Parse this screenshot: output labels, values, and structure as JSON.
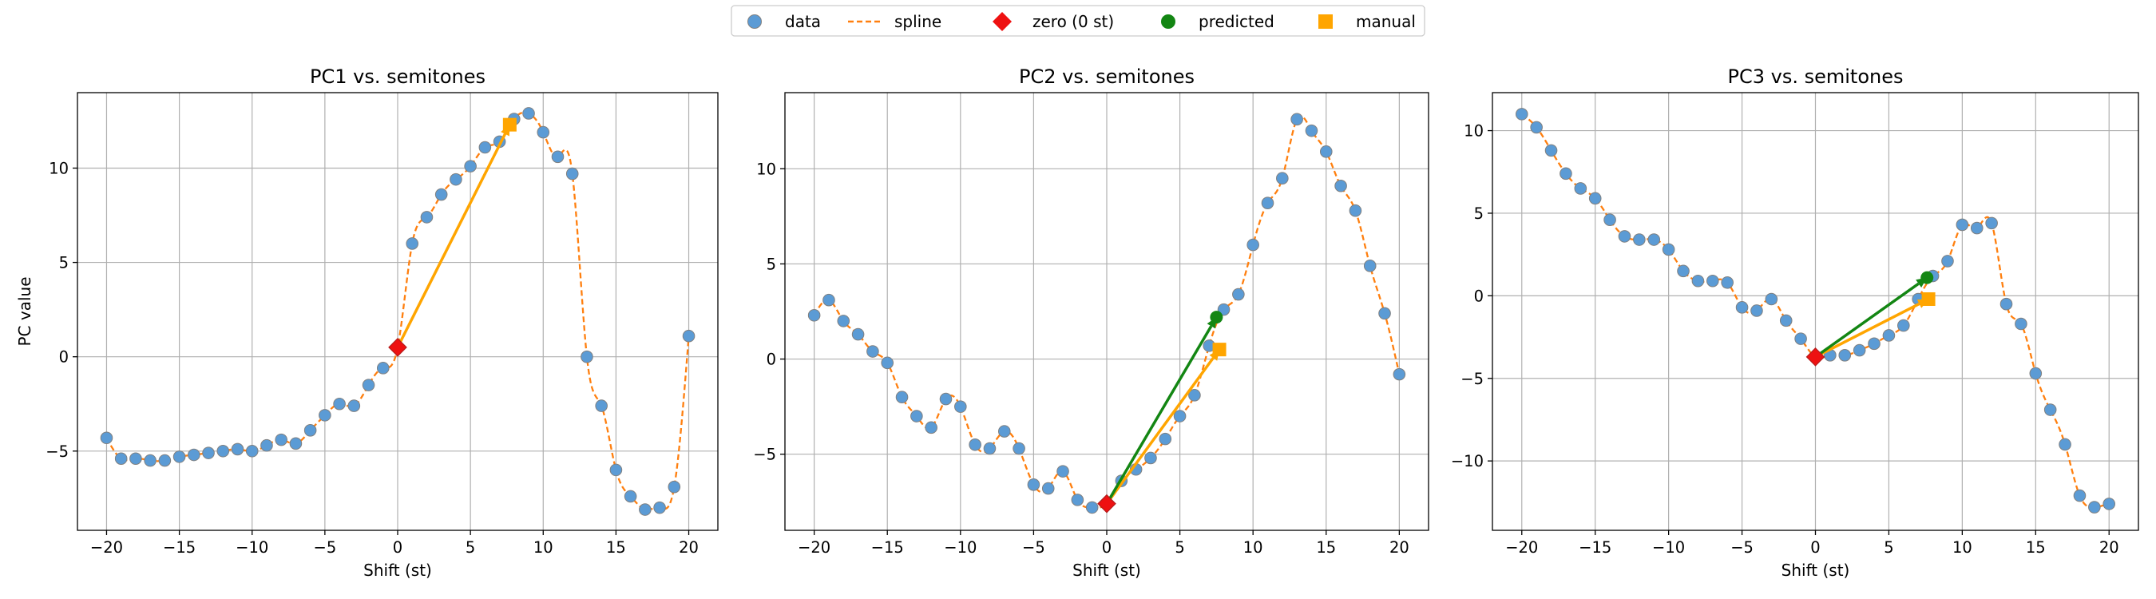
{
  "legend": {
    "items": [
      {
        "label": "data",
        "marker": "circle",
        "color": "#5b9bd5"
      },
      {
        "label": "spline",
        "marker": "dashed-line",
        "color": "#ff7f0e"
      },
      {
        "label": "zero (0 st)",
        "marker": "diamond",
        "color": "#ee1111"
      },
      {
        "label": "predicted",
        "marker": "circle",
        "color": "#138613"
      },
      {
        "label": "manual",
        "marker": "square",
        "color": "#ffa500"
      }
    ],
    "placement": "top-center"
  },
  "colors": {
    "data_fill": "#5b9bd5",
    "data_edge": "#808080",
    "spline": "#ff7f0e",
    "zero": "#ee1111",
    "zero_edge": "#b31b1b",
    "predicted": "#138613",
    "manual": "#ffa500",
    "grid": "#b0b0b0"
  },
  "chart_data": [
    {
      "type": "scatter",
      "title": "PC1 vs. semitones",
      "xlabel": "Shift (st)",
      "ylabel": "PC value",
      "xlim": [
        -22,
        22
      ],
      "ylim": [
        -9.2,
        14
      ],
      "xticks": [
        -20,
        -15,
        -10,
        -5,
        0,
        5,
        10,
        15,
        20
      ],
      "yticks": [
        -5,
        0,
        5,
        10
      ],
      "grid": true,
      "x": [
        -20,
        -19,
        -18,
        -17,
        -16,
        -15,
        -14,
        -13,
        -12,
        -11,
        -10,
        -9,
        -8,
        -7,
        -6,
        -5,
        -4,
        -3,
        -2,
        -1,
        0,
        1,
        2,
        3,
        4,
        5,
        6,
        7,
        8,
        9,
        10,
        11,
        12,
        13,
        14,
        15,
        16,
        17,
        18,
        19,
        20
      ],
      "y": [
        -4.3,
        -5.4,
        -5.4,
        -5.5,
        -5.5,
        -5.3,
        -5.2,
        -5.1,
        -5.0,
        -4.9,
        -5.0,
        -4.7,
        -4.4,
        -4.6,
        -3.9,
        -3.1,
        -2.5,
        -2.6,
        -1.5,
        -0.6,
        0.5,
        6.0,
        7.4,
        8.6,
        9.4,
        10.1,
        11.1,
        11.4,
        12.6,
        12.9,
        11.9,
        10.6,
        9.7,
        0.0,
        -2.6,
        -6.0,
        -7.4,
        -8.1,
        -8.0,
        -6.9,
        1.1
      ],
      "zero_point": [
        0,
        0.5
      ],
      "manual_point": [
        7.7,
        12.3
      ],
      "predicted_point": null
    },
    {
      "type": "scatter",
      "title": "PC2 vs. semitones",
      "xlabel": "Shift (st)",
      "ylabel": "",
      "xlim": [
        -22,
        22
      ],
      "ylim": [
        -9,
        14
      ],
      "xticks": [
        -20,
        -15,
        -10,
        -5,
        0,
        5,
        10,
        15,
        20
      ],
      "yticks": [
        -5,
        0,
        5,
        10
      ],
      "grid": true,
      "x": [
        -20,
        -19,
        -18,
        -17,
        -16,
        -15,
        -14,
        -13,
        -12,
        -11,
        -10,
        -9,
        -8,
        -7,
        -6,
        -5,
        -4,
        -3,
        -2,
        -1,
        0,
        1,
        2,
        3,
        4,
        5,
        6,
        7,
        8,
        9,
        10,
        11,
        12,
        13,
        14,
        15,
        16,
        17,
        18,
        19,
        20
      ],
      "y": [
        2.3,
        3.1,
        2.0,
        1.3,
        0.4,
        -0.2,
        -2.0,
        -3.0,
        -3.6,
        -2.1,
        -2.5,
        -4.5,
        -4.7,
        -3.8,
        -4.7,
        -6.6,
        -6.8,
        -5.9,
        -7.4,
        -7.8,
        -7.6,
        -6.4,
        -5.8,
        -5.2,
        -4.2,
        -3.0,
        -1.9,
        0.7,
        2.6,
        3.4,
        6.0,
        8.2,
        9.5,
        12.6,
        12.0,
        10.9,
        9.1,
        7.8,
        4.9,
        2.4,
        -0.8
      ],
      "zero_point": [
        0,
        -7.6
      ],
      "manual_point": [
        7.7,
        0.5
      ],
      "predicted_point": [
        7.5,
        2.2
      ]
    },
    {
      "type": "scatter",
      "title": "PC3 vs. semitones",
      "xlabel": "Shift (st)",
      "ylabel": "",
      "xlim": [
        -22,
        22
      ],
      "ylim": [
        -14.2,
        12.3
      ],
      "xticks": [
        -20,
        -15,
        -10,
        -5,
        0,
        5,
        10,
        15,
        20
      ],
      "yticks": [
        -10,
        -5,
        0,
        5,
        10
      ],
      "grid": true,
      "x": [
        -20,
        -19,
        -18,
        -17,
        -16,
        -15,
        -14,
        -13,
        -12,
        -11,
        -10,
        -9,
        -8,
        -7,
        -6,
        -5,
        -4,
        -3,
        -2,
        -1,
        0,
        1,
        2,
        3,
        4,
        5,
        6,
        7,
        8,
        9,
        10,
        11,
        12,
        13,
        14,
        15,
        16,
        17,
        18,
        19,
        20
      ],
      "y": [
        11.0,
        10.2,
        8.8,
        7.4,
        6.5,
        5.9,
        4.6,
        3.6,
        3.4,
        3.4,
        2.8,
        1.5,
        0.9,
        0.9,
        0.8,
        -0.7,
        -0.9,
        -0.2,
        -1.5,
        -2.6,
        -3.7,
        -3.6,
        -3.6,
        -3.3,
        -2.9,
        -2.4,
        -1.8,
        -0.2,
        1.2,
        2.1,
        4.3,
        4.1,
        4.4,
        -0.5,
        -1.7,
        -4.7,
        -6.9,
        -9.0,
        -12.1,
        -12.8,
        -12.6
      ],
      "zero_point": [
        0,
        -3.7
      ],
      "manual_point": [
        7.7,
        -0.2
      ],
      "predicted_point": [
        7.6,
        1.1
      ]
    }
  ]
}
